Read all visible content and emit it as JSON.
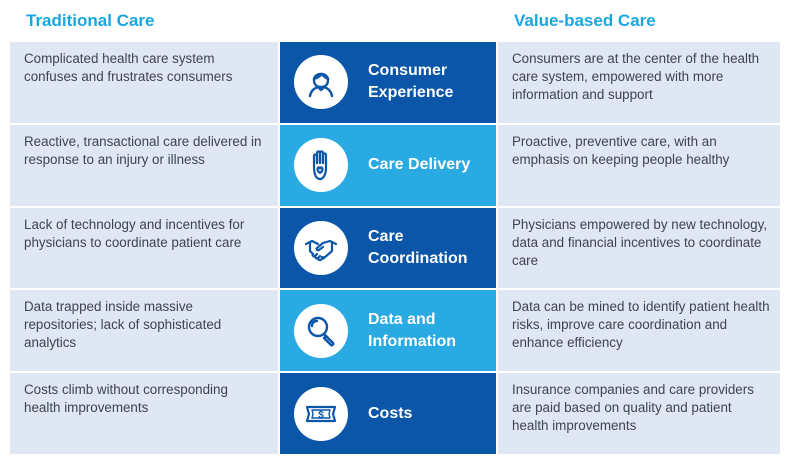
{
  "headers": {
    "left": "Traditional Care",
    "right": "Value-based Care"
  },
  "colors": {
    "accent": "#1aa6e1",
    "dark_blue": "#0b56a8",
    "light_blue": "#29aae2",
    "row_bg": "#dfe7f2"
  },
  "rows": [
    {
      "traditional": "Complicated health care system confuses and frustrates consumers",
      "category": "Consumer Experience",
      "icon": "person-icon",
      "value_based": "Consumers are at the center of the health care system, empowered with more information and support"
    },
    {
      "traditional": "Reactive, transactional care delivered in response to an injury or illness",
      "category": "Care Delivery",
      "icon": "hand-heart-icon",
      "value_based": "Proactive, preventive care, with an emphasis on keeping people healthy"
    },
    {
      "traditional": "Lack of technology and incentives for physicians to coordinate patient care",
      "category": "Care Coordination",
      "icon": "handshake-icon",
      "value_based": "Physicians empowered by new technology, data and financial incentives to coordinate care"
    },
    {
      "traditional": "Data trapped inside massive repositories; lack of sophisticated analytics",
      "category": "Data and Information",
      "icon": "magnifier-icon",
      "value_based": "Data can be mined to identify patient health risks, improve care coordination and enhance efficiency"
    },
    {
      "traditional": "Costs climb without corresponding health improvements",
      "category": "Costs",
      "icon": "dollar-bill-icon",
      "value_based": "Insurance companies and care providers are paid based on quality and patient health improvements"
    }
  ]
}
